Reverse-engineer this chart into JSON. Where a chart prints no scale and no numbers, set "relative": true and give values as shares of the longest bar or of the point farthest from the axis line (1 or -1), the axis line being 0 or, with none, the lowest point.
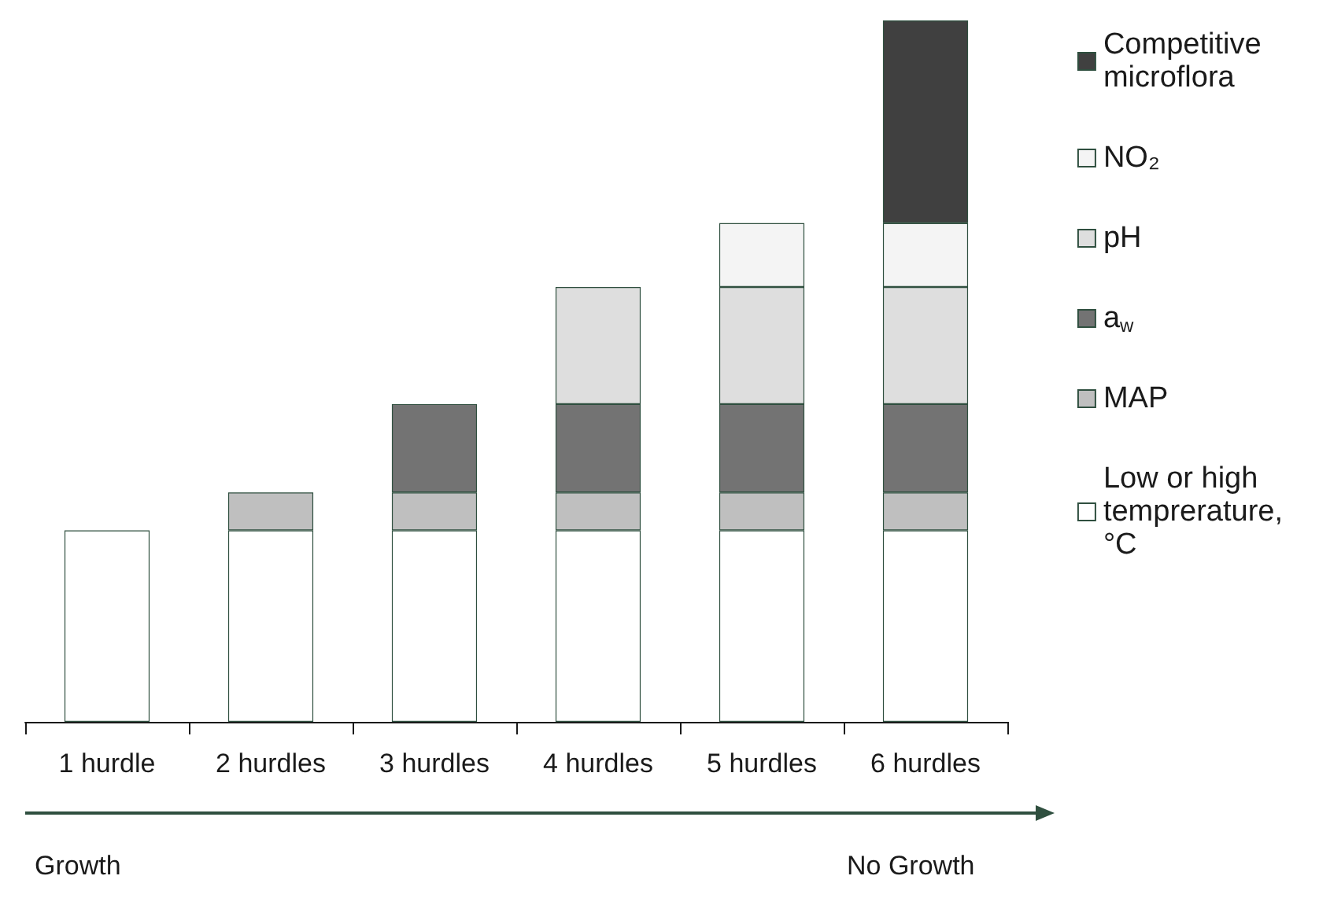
{
  "chart_data": {
    "type": "bar",
    "stacked": true,
    "relative": true,
    "legend": "right",
    "grid": false,
    "categories": [
      "1 hurdle",
      "2 hurdles",
      "3 hurdles",
      "4 hurdles",
      "5 hurdles",
      "6 hurdles"
    ],
    "series": [
      {
        "name": "Low or high\ntemprerature,\n°C",
        "color": "#ffffff",
        "values": [
          0.273,
          0.273,
          0.273,
          0.273,
          0.273,
          0.273
        ]
      },
      {
        "name": "MAP",
        "color": "#bfbfbf",
        "values": [
          null,
          0.054,
          0.054,
          0.054,
          0.054,
          0.054
        ]
      },
      {
        "name": "a$_{w}$",
        "color": "#737373",
        "values": [
          null,
          null,
          0.126,
          0.126,
          0.126,
          0.126
        ]
      },
      {
        "name": "pH",
        "color": "#dedede",
        "values": [
          null,
          null,
          null,
          0.167,
          0.167,
          0.167
        ]
      },
      {
        "name": "NO₂",
        "color": "#f4f4f4",
        "values": [
          null,
          null,
          null,
          null,
          0.091,
          0.091
        ]
      },
      {
        "name": "Competitive\nmicroflora",
        "color": "#404040",
        "values": [
          null,
          null,
          null,
          null,
          null,
          0.289
        ]
      }
    ],
    "annotations": [
      "Growth",
      "No Growth"
    ]
  }
}
